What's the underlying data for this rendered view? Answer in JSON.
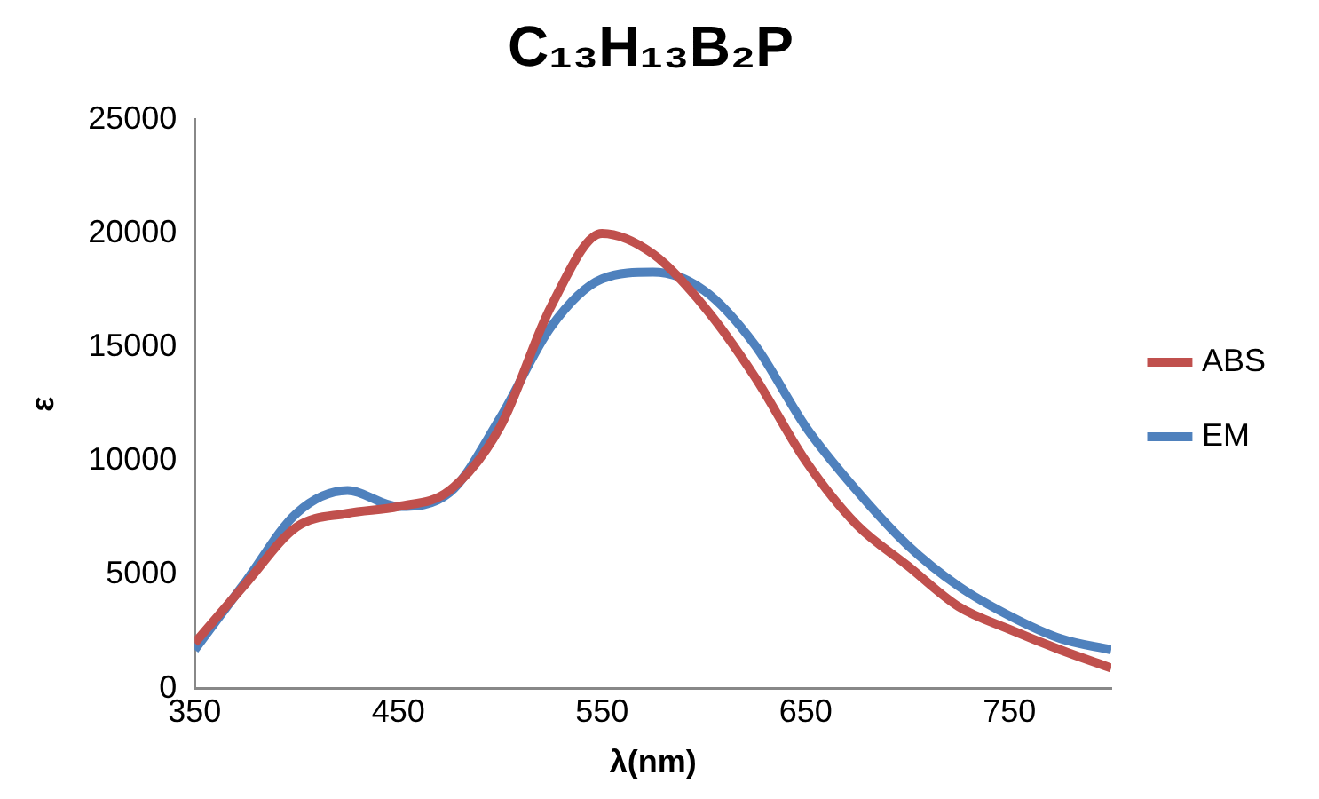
{
  "chart_data": {
    "type": "line",
    "title": "C₁₃H₁₃B₂P",
    "xlabel": "λ(nm)",
    "ylabel": "ε",
    "x": [
      350,
      375,
      400,
      425,
      450,
      475,
      500,
      525,
      550,
      575,
      600,
      625,
      650,
      675,
      700,
      725,
      750,
      775,
      800
    ],
    "series": [
      {
        "name": "ABS",
        "color": "#c0504d",
        "values": [
          2000,
          4600,
          7100,
          7700,
          8000,
          8700,
          11500,
          16800,
          20000,
          19100,
          16800,
          13700,
          10000,
          7200,
          5400,
          3600,
          2600,
          1700,
          900
        ]
      },
      {
        "name": "EM",
        "color": "#4f81bd",
        "values": [
          1700,
          4700,
          7700,
          8700,
          8000,
          8600,
          11900,
          15900,
          18000,
          18300,
          17500,
          15100,
          11500,
          8700,
          6300,
          4500,
          3200,
          2200,
          1700
        ]
      }
    ],
    "xlim": [
      350,
      800
    ],
    "xticks": [
      350,
      450,
      550,
      650,
      750
    ],
    "ylim": [
      0,
      25000
    ],
    "yticks": [
      0,
      5000,
      10000,
      15000,
      20000,
      25000
    ],
    "grid": false,
    "legend": "right",
    "marker": "none",
    "line_style": "solid"
  }
}
